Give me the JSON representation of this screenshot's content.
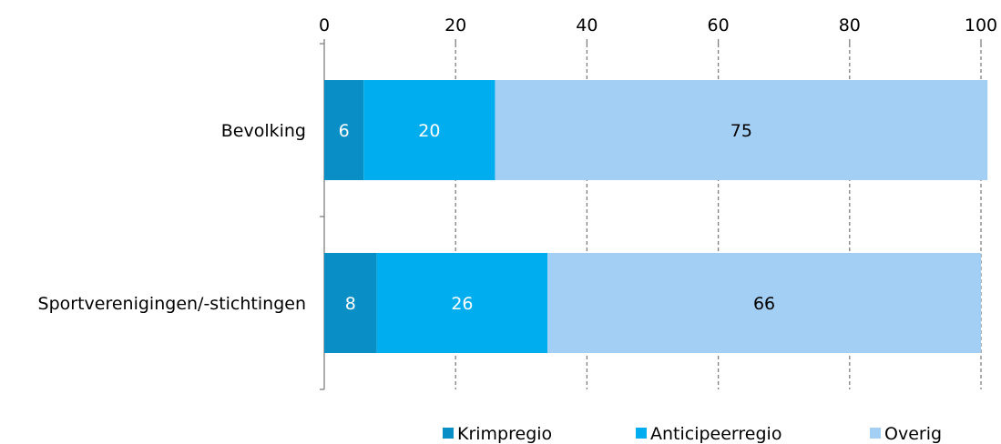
{
  "chart_data": {
    "type": "bar",
    "orientation": "horizontal",
    "stacked": true,
    "categories": [
      "Bevolking",
      "Sportverenigingen/-stichtingen"
    ],
    "series": [
      {
        "name": "Krimpregio",
        "values": [
          6,
          8
        ],
        "color": "#0a8ec6",
        "label_color": "#ffffff"
      },
      {
        "name": "Anticipeerregio",
        "values": [
          20,
          26
        ],
        "color": "#00aeef",
        "label_color": "#ffffff"
      },
      {
        "name": "Overig",
        "values": [
          75,
          66
        ],
        "color": "#a2cff3",
        "label_color": "#000000"
      }
    ],
    "xlim": [
      0,
      100
    ],
    "xticks": [
      0,
      20,
      40,
      60,
      80,
      100
    ],
    "x_axis_position": "top",
    "grid": "vertical-dashed",
    "grid_color": "#7f7f7f",
    "legend_position": "bottom"
  }
}
